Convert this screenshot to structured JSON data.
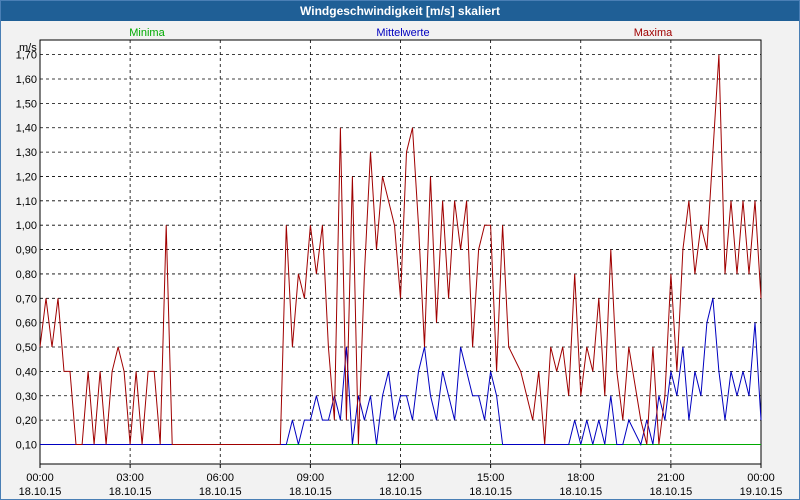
{
  "window": {
    "title": "Windgeschwindigkeit [m/s] skaliert"
  },
  "colors": {
    "minima": "#00aa00",
    "mittelwerte": "#0000c0",
    "maxima": "#a00000",
    "grid": "#000000",
    "title_bar": "#1f5f96"
  },
  "chart_data": {
    "type": "line",
    "title": "Windgeschwindigkeit [m/s] skaliert",
    "ylabel": "m/s",
    "ylim": [
      0.02,
      1.76
    ],
    "xlim_hours": [
      0,
      24
    ],
    "yticks": [
      "0,10",
      "0,20",
      "0,30",
      "0,40",
      "0,50",
      "0,60",
      "0,70",
      "0,80",
      "0,90",
      "1,00",
      "1,10",
      "1,20",
      "1,30",
      "1,40",
      "1,50",
      "1,60",
      "1,70"
    ],
    "xticks": [
      {
        "time": "00:00",
        "date": "18.10.15"
      },
      {
        "time": "03:00",
        "date": "18.10.15"
      },
      {
        "time": "06:00",
        "date": "18.10.15"
      },
      {
        "time": "09:00",
        "date": "18.10.15"
      },
      {
        "time": "12:00",
        "date": "18.10.15"
      },
      {
        "time": "15:00",
        "date": "18.10.15"
      },
      {
        "time": "18:00",
        "date": "18.10.15"
      },
      {
        "time": "21:00",
        "date": "18.10.15"
      },
      {
        "time": "00:00",
        "date": "19.10.15"
      }
    ],
    "grid": true,
    "series": [
      {
        "name": "Minima",
        "color": "#00aa00",
        "x": [
          0.0,
          24.0
        ],
        "y": [
          0.1,
          0.1
        ]
      },
      {
        "name": "Mittelwerte",
        "color": "#0000c0",
        "x": [
          0.0,
          8.2,
          8.4,
          8.6,
          8.8,
          9.0,
          9.2,
          9.4,
          9.6,
          9.8,
          10.0,
          10.2,
          10.4,
          10.6,
          10.8,
          11.0,
          11.2,
          11.4,
          11.6,
          11.8,
          12.0,
          12.2,
          12.4,
          12.6,
          12.8,
          13.0,
          13.2,
          13.4,
          13.6,
          13.8,
          14.0,
          14.2,
          14.4,
          14.6,
          14.8,
          15.0,
          15.2,
          15.4,
          15.6,
          17.6,
          17.8,
          18.0,
          18.2,
          18.4,
          18.6,
          18.8,
          19.0,
          19.2,
          19.4,
          19.6,
          20.0,
          20.2,
          20.4,
          20.6,
          20.8,
          21.0,
          21.2,
          21.4,
          21.6,
          21.8,
          22.0,
          22.2,
          22.4,
          22.6,
          22.8,
          23.0,
          23.2,
          23.4,
          23.6,
          23.8,
          24.0
        ],
        "y": [
          0.1,
          0.1,
          0.2,
          0.1,
          0.2,
          0.2,
          0.3,
          0.2,
          0.2,
          0.3,
          0.2,
          0.5,
          0.1,
          0.3,
          0.2,
          0.3,
          0.1,
          0.3,
          0.4,
          0.2,
          0.3,
          0.3,
          0.2,
          0.4,
          0.5,
          0.3,
          0.2,
          0.4,
          0.3,
          0.2,
          0.5,
          0.4,
          0.3,
          0.3,
          0.2,
          0.4,
          0.3,
          0.1,
          0.1,
          0.1,
          0.2,
          0.1,
          0.2,
          0.1,
          0.2,
          0.1,
          0.3,
          0.1,
          0.1,
          0.2,
          0.1,
          0.2,
          0.1,
          0.3,
          0.2,
          0.4,
          0.3,
          0.5,
          0.2,
          0.4,
          0.3,
          0.6,
          0.7,
          0.4,
          0.2,
          0.4,
          0.3,
          0.4,
          0.3,
          0.6,
          0.2
        ]
      },
      {
        "name": "Maxima",
        "color": "#a00000",
        "x": [
          0.0,
          0.2,
          0.4,
          0.6,
          0.8,
          1.0,
          1.2,
          1.4,
          1.6,
          1.8,
          2.0,
          2.2,
          2.4,
          2.6,
          2.8,
          3.0,
          3.2,
          3.4,
          3.6,
          3.8,
          4.0,
          4.2,
          4.4,
          4.6,
          5.0,
          6.0,
          7.0,
          8.0,
          8.2,
          8.4,
          8.6,
          8.8,
          9.0,
          9.2,
          9.4,
          9.6,
          9.8,
          10.0,
          10.2,
          10.4,
          10.6,
          10.8,
          11.0,
          11.2,
          11.4,
          11.6,
          11.8,
          12.0,
          12.2,
          12.4,
          12.6,
          12.8,
          13.0,
          13.2,
          13.4,
          13.6,
          13.8,
          14.0,
          14.2,
          14.4,
          14.6,
          14.8,
          15.0,
          15.2,
          15.4,
          15.6,
          16.0,
          16.4,
          16.6,
          16.8,
          17.0,
          17.2,
          17.4,
          17.6,
          17.8,
          18.0,
          18.2,
          18.4,
          18.6,
          18.8,
          19.0,
          19.2,
          19.4,
          19.6,
          20.0,
          20.2,
          20.4,
          20.6,
          20.8,
          21.0,
          21.2,
          21.4,
          21.6,
          21.8,
          22.0,
          22.2,
          22.4,
          22.6,
          22.8,
          23.0,
          23.2,
          23.4,
          23.6,
          23.8,
          24.0
        ],
        "y": [
          0.5,
          0.7,
          0.5,
          0.7,
          0.4,
          0.4,
          0.1,
          0.1,
          0.4,
          0.1,
          0.4,
          0.1,
          0.4,
          0.5,
          0.4,
          0.1,
          0.4,
          0.1,
          0.4,
          0.4,
          0.1,
          1.0,
          0.1,
          0.1,
          0.1,
          0.1,
          0.1,
          0.1,
          1.0,
          0.5,
          0.8,
          0.7,
          1.0,
          0.8,
          1.0,
          0.5,
          0.2,
          1.4,
          0.2,
          1.2,
          0.1,
          0.8,
          1.3,
          0.9,
          1.2,
          1.1,
          1.0,
          0.7,
          1.3,
          1.4,
          1.0,
          0.5,
          1.2,
          0.6,
          1.1,
          0.7,
          1.1,
          0.9,
          1.1,
          0.5,
          0.9,
          1.0,
          1.0,
          0.4,
          1.0,
          0.5,
          0.4,
          0.2,
          0.4,
          0.1,
          0.5,
          0.4,
          0.5,
          0.3,
          0.8,
          0.3,
          0.5,
          0.4,
          0.7,
          0.3,
          0.9,
          0.4,
          0.2,
          0.5,
          0.2,
          0.1,
          0.5,
          0.1,
          0.3,
          0.8,
          0.4,
          0.9,
          1.1,
          0.8,
          1.0,
          0.9,
          1.3,
          1.7,
          0.8,
          1.1,
          0.8,
          1.1,
          0.8,
          1.1,
          0.7
        ]
      }
    ]
  }
}
